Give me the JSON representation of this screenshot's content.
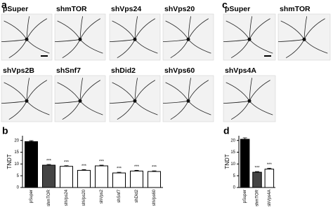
{
  "panels": {
    "a": {
      "label": "a",
      "images": [
        "pSuper",
        "shmTOR",
        "shVps24",
        "shVps20",
        "shVps2B",
        "shSnf7",
        "shDid2",
        "shVps60"
      ]
    },
    "c": {
      "label": "c",
      "images": [
        "pSuper",
        "shmTOR",
        "shVps4A"
      ]
    }
  },
  "chart_data": [
    {
      "type": "bar",
      "panel_label": "b",
      "ylabel": "TNDT",
      "categories": [
        "pSuper",
        "shmTOR",
        "shVps24",
        "shVps20",
        "shVps2",
        "shSnf7",
        "shDid2",
        "shVps60"
      ],
      "values": [
        19.5,
        9.5,
        9,
        7.3,
        9.2,
        6.2,
        7,
        6.8
      ],
      "errors": [
        0.4,
        0.3,
        0.3,
        0.3,
        0.3,
        0.3,
        0.3,
        0.3
      ],
      "colors": [
        "#000000",
        "#444444",
        "#ffffff",
        "#ffffff",
        "#ffffff",
        "#ffffff",
        "#ffffff",
        "#ffffff"
      ],
      "significance": [
        null,
        "***",
        "***",
        "***",
        "***",
        "***",
        "***",
        "***"
      ],
      "ylim": [
        0,
        22
      ],
      "yticks": [
        0,
        5,
        10,
        15,
        20
      ]
    },
    {
      "type": "bar",
      "panel_label": "d",
      "ylabel": "TNDT",
      "categories": [
        "pSuper",
        "shmTOR",
        "shVps4A"
      ],
      "values": [
        20.5,
        6.5,
        7.8
      ],
      "errors": [
        0.6,
        0.3,
        0.4
      ],
      "colors": [
        "#000000",
        "#444444",
        "#ffffff"
      ],
      "significance": [
        null,
        "***",
        "***"
      ],
      "ylim": [
        0,
        22
      ],
      "yticks": [
        0,
        5,
        10,
        15,
        20
      ]
    }
  ]
}
